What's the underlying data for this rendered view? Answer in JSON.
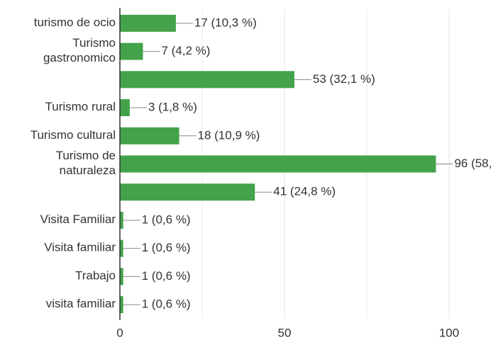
{
  "chart_data": {
    "type": "bar",
    "orientation": "horizontal",
    "categories": [
      "turismo de ocio",
      "Turismo\ngastronomico",
      null,
      "Turismo rural",
      "Turismo cultural",
      "Turismo de\nnaturaleza",
      null,
      "Visita Familiar",
      "Visita familiar",
      "Trabajo",
      "visita familiar"
    ],
    "values": [
      17,
      7,
      53,
      3,
      18,
      96,
      41,
      1,
      1,
      1,
      1
    ],
    "value_labels": [
      "17 (10,3 %)",
      "7 (4,2 %)",
      "53 (32,1 %)",
      "3 (1,8 %)",
      "18 (10,9 %)",
      "96 (58,",
      "41 (24,8 %)",
      "1 (0,6 %)",
      "1 (0,6 %)",
      "1 (0,6 %)",
      "1 (0,6 %)"
    ],
    "color": "#43a24a",
    "xlim": [
      0,
      100
    ],
    "xticks": [
      0,
      50,
      100
    ],
    "minor_xticks": [
      25,
      75
    ],
    "grid": true
  }
}
